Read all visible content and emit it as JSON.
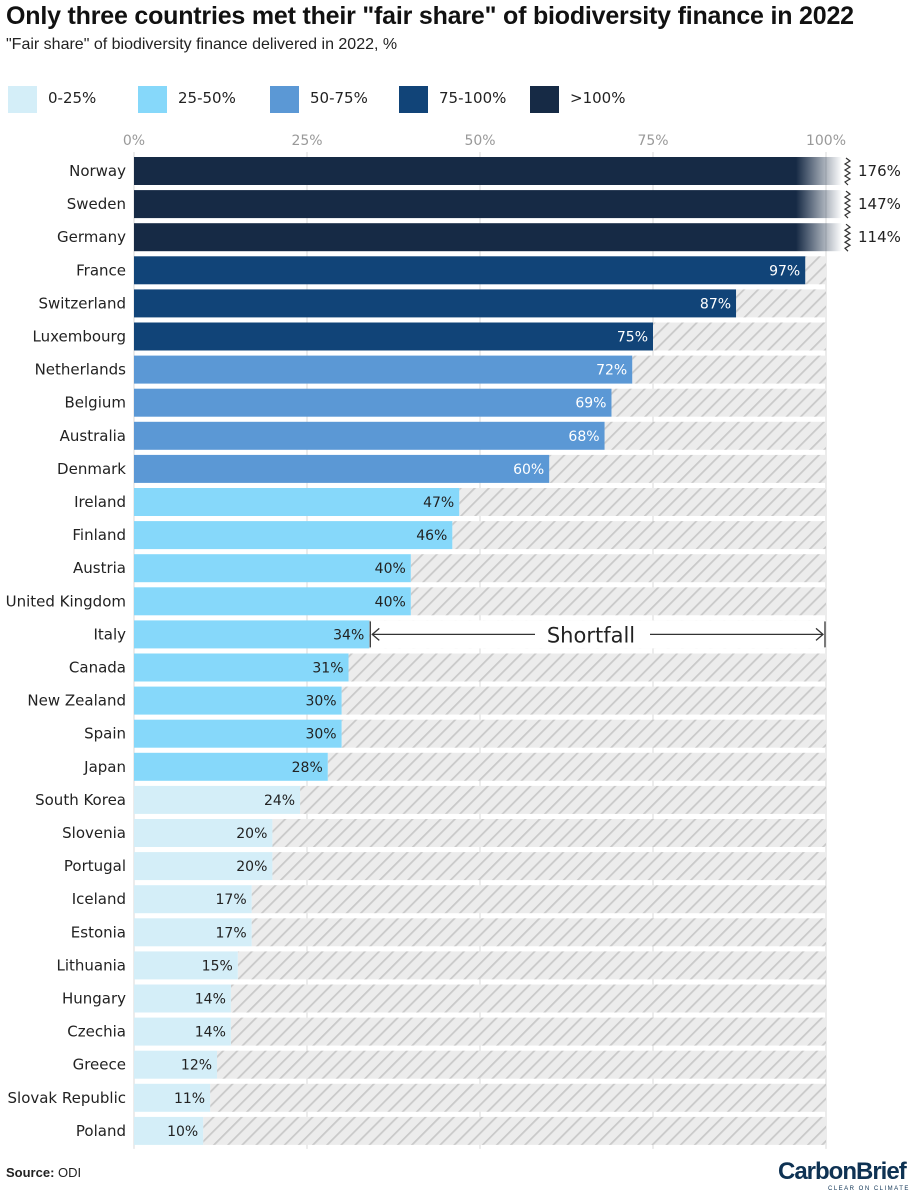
{
  "title": "Only three countries met their \"fair share\" of biodiversity finance in 2022",
  "subtitle": "\"Fair share\" of biodiversity finance delivered in 2022, %",
  "legend": [
    {
      "label": "0-25%",
      "color": "#d4eef8"
    },
    {
      "label": "25-50%",
      "color": "#86d8fa"
    },
    {
      "label": "50-75%",
      "color": "#5b98d5"
    },
    {
      "label": "75-100%",
      "color": "#114478"
    },
    {
      "label": ">100%",
      "color": "#162a45"
    }
  ],
  "chart_data": {
    "type": "bar",
    "orientation": "horizontal",
    "xlim": [
      0,
      100
    ],
    "x_ticks": [
      "0%",
      "25%",
      "50%",
      "75%",
      "100%"
    ],
    "categories": [
      "Norway",
      "Sweden",
      "Germany",
      "France",
      "Switzerland",
      "Luxembourg",
      "Netherlands",
      "Belgium",
      "Australia",
      "Denmark",
      "Ireland",
      "Finland",
      "Austria",
      "United Kingdom",
      "Italy",
      "Canada",
      "New Zealand",
      "Spain",
      "Japan",
      "South Korea",
      "Slovenia",
      "Portugal",
      "Iceland",
      "Estonia",
      "Lithuania",
      "Hungary",
      "Czechia",
      "Greece",
      "Slovak Republic",
      "Poland"
    ],
    "values": [
      176,
      147,
      114,
      97,
      87,
      75,
      72,
      69,
      68,
      60,
      47,
      46,
      40,
      40,
      34,
      31,
      30,
      30,
      28,
      24,
      20,
      20,
      17,
      17,
      15,
      14,
      14,
      12,
      11,
      10
    ],
    "value_labels": [
      "176%",
      "147%",
      "114%",
      "97%",
      "87%",
      "75%",
      "72%",
      "69%",
      "68%",
      "60%",
      "47%",
      "46%",
      "40%",
      "40%",
      "34%",
      "31%",
      "30%",
      "30%",
      "28%",
      "24%",
      "20%",
      "20%",
      "17%",
      "17%",
      "15%",
      "14%",
      "14%",
      "12%",
      "11%",
      "10%"
    ],
    "annotation": "Shortfall",
    "annotation_category": "Italy",
    "remainder_style": "hatched-gray"
  },
  "source_label": "Source:",
  "source_value": "ODI",
  "logo_word": "CarbonBrief",
  "logo_tagline": "CLEAR ON CLIMATE"
}
